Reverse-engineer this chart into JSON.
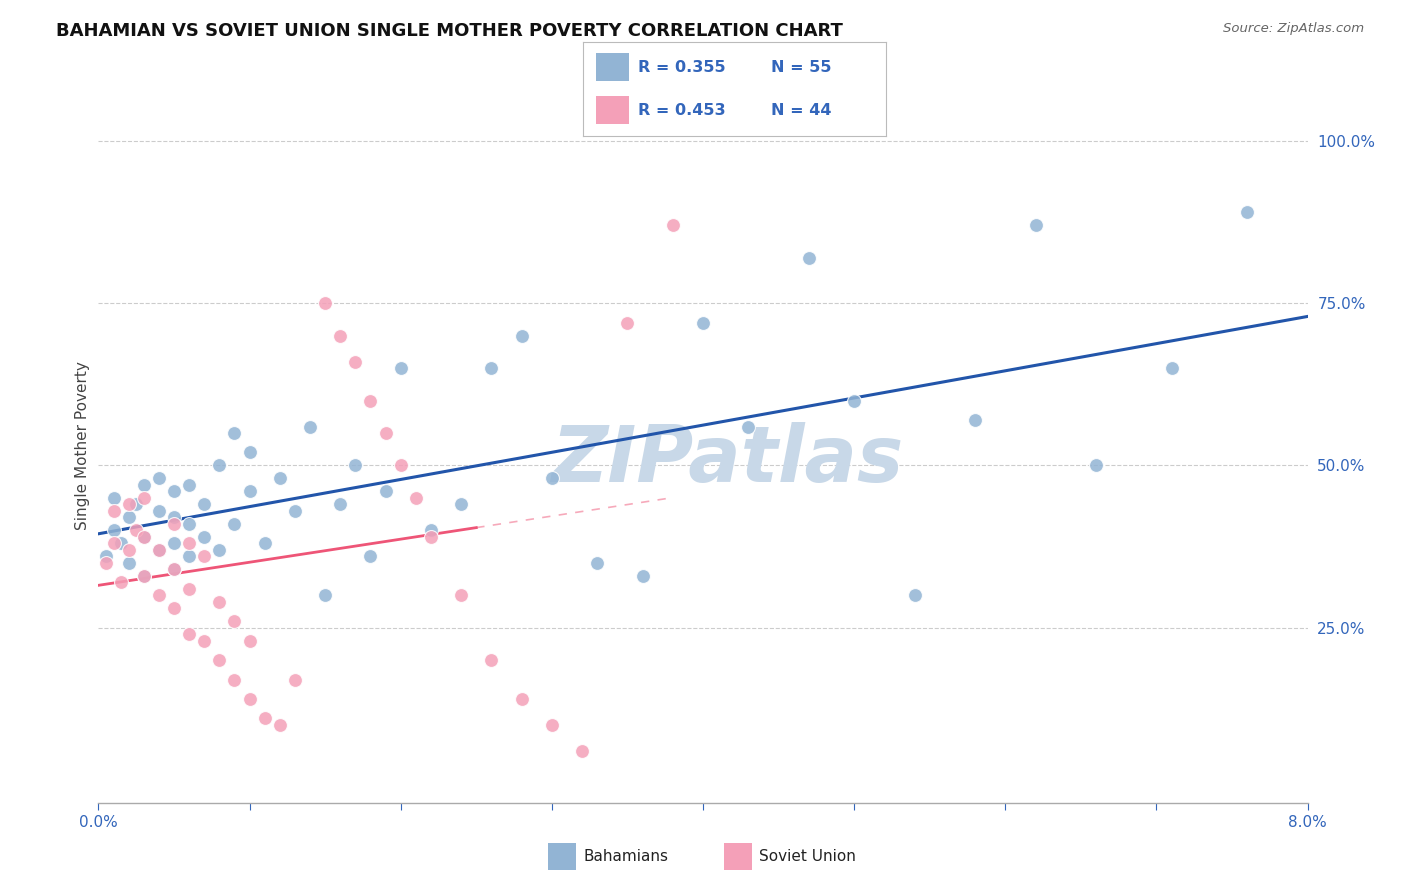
{
  "title": "BAHAMIAN VS SOVIET UNION SINGLE MOTHER POVERTY CORRELATION CHART",
  "source": "Source: ZipAtlas.com",
  "ylabel": "Single Mother Poverty",
  "xlim": [
    0.0,
    0.08
  ],
  "ylim": [
    -0.02,
    1.08
  ],
  "blue_color": "#92B4D4",
  "pink_color": "#F4A0B8",
  "blue_line_color": "#2255AA",
  "pink_line_color": "#EE5577",
  "label_color": "#3366BB",
  "watermark_color": "#C8D8E8",
  "watermark": "ZIPatlas",
  "bahamians_label": "Bahamians",
  "soviet_label": "Soviet Union",
  "bahamians_R": "0.355",
  "bahamians_N": "55",
  "soviet_R": "0.453",
  "soviet_N": "44",
  "bah_x": [
    0.0005,
    0.001,
    0.001,
    0.0015,
    0.002,
    0.002,
    0.0025,
    0.003,
    0.003,
    0.003,
    0.004,
    0.004,
    0.004,
    0.005,
    0.005,
    0.005,
    0.005,
    0.006,
    0.006,
    0.006,
    0.007,
    0.007,
    0.008,
    0.008,
    0.009,
    0.009,
    0.01,
    0.01,
    0.011,
    0.012,
    0.013,
    0.014,
    0.015,
    0.016,
    0.017,
    0.018,
    0.019,
    0.02,
    0.022,
    0.024,
    0.026,
    0.028,
    0.03,
    0.033,
    0.036,
    0.04,
    0.043,
    0.047,
    0.05,
    0.054,
    0.058,
    0.062,
    0.066,
    0.071,
    0.076
  ],
  "bah_y": [
    0.36,
    0.4,
    0.45,
    0.38,
    0.35,
    0.42,
    0.44,
    0.33,
    0.39,
    0.47,
    0.37,
    0.43,
    0.48,
    0.34,
    0.38,
    0.42,
    0.46,
    0.36,
    0.41,
    0.47,
    0.39,
    0.44,
    0.37,
    0.5,
    0.41,
    0.55,
    0.46,
    0.52,
    0.38,
    0.48,
    0.43,
    0.56,
    0.3,
    0.44,
    0.5,
    0.36,
    0.46,
    0.65,
    0.4,
    0.44,
    0.65,
    0.7,
    0.48,
    0.35,
    0.33,
    0.72,
    0.56,
    0.82,
    0.6,
    0.3,
    0.57,
    0.87,
    0.5,
    0.65,
    0.89
  ],
  "sov_x": [
    0.0005,
    0.001,
    0.001,
    0.0015,
    0.002,
    0.002,
    0.0025,
    0.003,
    0.003,
    0.003,
    0.004,
    0.004,
    0.005,
    0.005,
    0.005,
    0.006,
    0.006,
    0.006,
    0.007,
    0.007,
    0.008,
    0.008,
    0.009,
    0.009,
    0.01,
    0.01,
    0.011,
    0.012,
    0.013,
    0.015,
    0.016,
    0.017,
    0.018,
    0.019,
    0.02,
    0.021,
    0.022,
    0.024,
    0.026,
    0.028,
    0.03,
    0.032,
    0.035,
    0.038
  ],
  "sov_y": [
    0.35,
    0.38,
    0.43,
    0.32,
    0.37,
    0.44,
    0.4,
    0.33,
    0.39,
    0.45,
    0.3,
    0.37,
    0.28,
    0.34,
    0.41,
    0.24,
    0.31,
    0.38,
    0.23,
    0.36,
    0.2,
    0.29,
    0.17,
    0.26,
    0.14,
    0.23,
    0.11,
    0.1,
    0.17,
    0.75,
    0.7,
    0.66,
    0.6,
    0.55,
    0.5,
    0.45,
    0.39,
    0.3,
    0.2,
    0.14,
    0.1,
    0.06,
    0.72,
    0.87
  ]
}
